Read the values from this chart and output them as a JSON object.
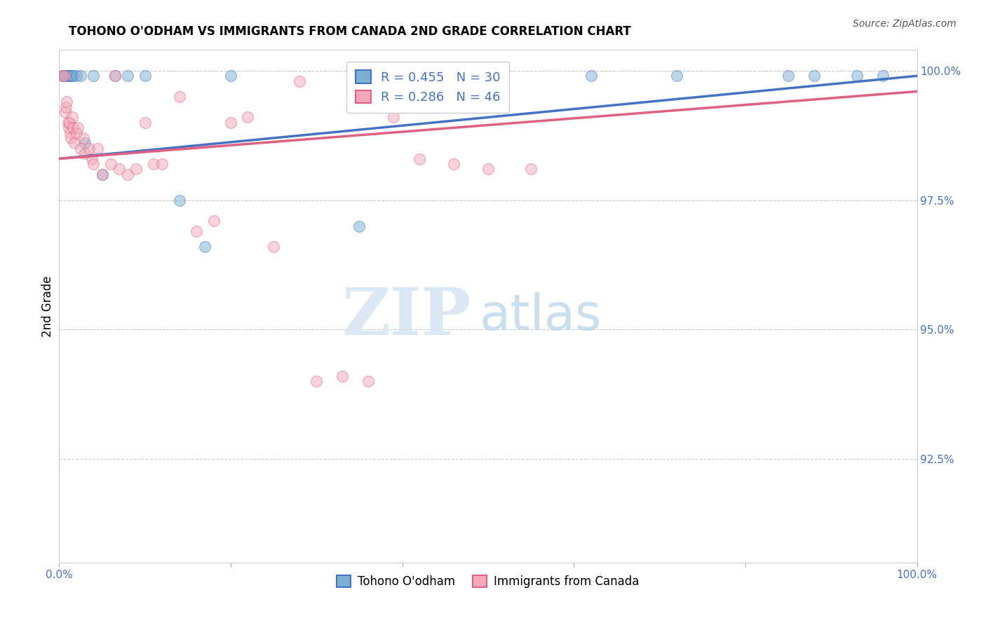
{
  "title": "TOHONO O'ODHAM VS IMMIGRANTS FROM CANADA 2ND GRADE CORRELATION CHART",
  "source": "Source: ZipAtlas.com",
  "ylabel": "2nd Grade",
  "xlim": [
    0.0,
    1.0
  ],
  "ylim": [
    0.905,
    1.004
  ],
  "yticks": [
    0.925,
    0.95,
    0.975,
    1.0
  ],
  "ytick_labels": [
    "92.5%",
    "95.0%",
    "97.5%",
    "100.0%"
  ],
  "xtick_labels": [
    "0.0%",
    "",
    "",
    "",
    "",
    "100.0%"
  ],
  "blue_scatter_x": [
    0.004,
    0.006,
    0.007,
    0.008,
    0.009,
    0.01,
    0.011,
    0.012,
    0.013,
    0.014,
    0.015,
    0.016,
    0.02,
    0.025,
    0.03,
    0.04,
    0.05,
    0.065,
    0.08,
    0.1,
    0.14,
    0.17,
    0.2,
    0.35,
    0.62,
    0.72,
    0.85,
    0.88,
    0.93,
    0.96
  ],
  "blue_scatter_y": [
    0.999,
    0.999,
    0.999,
    0.999,
    0.999,
    0.999,
    0.999,
    0.999,
    0.999,
    0.999,
    0.999,
    0.999,
    0.999,
    0.999,
    0.986,
    0.999,
    0.98,
    0.999,
    0.999,
    0.999,
    0.975,
    0.966,
    0.999,
    0.97,
    0.999,
    0.999,
    0.999,
    0.999,
    0.999,
    0.999
  ],
  "pink_scatter_x": [
    0.004,
    0.006,
    0.007,
    0.008,
    0.009,
    0.01,
    0.011,
    0.012,
    0.013,
    0.014,
    0.015,
    0.016,
    0.018,
    0.02,
    0.022,
    0.025,
    0.028,
    0.03,
    0.035,
    0.038,
    0.04,
    0.045,
    0.05,
    0.06,
    0.065,
    0.07,
    0.08,
    0.09,
    0.1,
    0.11,
    0.12,
    0.14,
    0.16,
    0.18,
    0.2,
    0.22,
    0.25,
    0.28,
    0.3,
    0.33,
    0.36,
    0.39,
    0.42,
    0.46,
    0.5,
    0.55
  ],
  "pink_scatter_y": [
    0.999,
    0.999,
    0.992,
    0.993,
    0.994,
    0.99,
    0.989,
    0.99,
    0.988,
    0.987,
    0.991,
    0.989,
    0.986,
    0.988,
    0.989,
    0.985,
    0.987,
    0.984,
    0.985,
    0.983,
    0.982,
    0.985,
    0.98,
    0.982,
    0.999,
    0.981,
    0.98,
    0.981,
    0.99,
    0.982,
    0.982,
    0.995,
    0.969,
    0.971,
    0.99,
    0.991,
    0.966,
    0.998,
    0.94,
    0.941,
    0.94,
    0.991,
    0.983,
    0.982,
    0.981,
    0.981
  ],
  "blue_R": 0.455,
  "blue_N": 30,
  "pink_R": 0.286,
  "pink_N": 46,
  "blue_line_x0": 0.0,
  "blue_line_x1": 1.0,
  "blue_line_y0": 0.983,
  "blue_line_y1": 0.999,
  "pink_line_x0": 0.0,
  "pink_line_x1": 1.0,
  "pink_line_y0": 0.983,
  "pink_line_y1": 0.996,
  "blue_scatter_color": "#7bafd4",
  "blue_scatter_edge": "#4472c4",
  "pink_scatter_color": "#f4a7b9",
  "pink_scatter_edge": "#e06080",
  "blue_line_color": "#4472c4",
  "pink_line_color": "#e06080",
  "watermark_zip": "ZIP",
  "watermark_atlas": "atlas",
  "legend_blue_label": "Tohono O'odham",
  "legend_pink_label": "Immigrants from Canada",
  "background_color": "#ffffff",
  "grid_color": "#c8c8c8"
}
